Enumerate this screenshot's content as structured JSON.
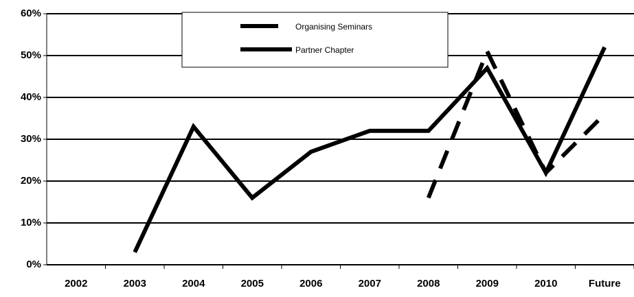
{
  "chart_data": {
    "type": "line",
    "categories": [
      "2002",
      "2003",
      "2004",
      "2005",
      "2006",
      "2007",
      "2008",
      "2009",
      "2010",
      "Future"
    ],
    "series": [
      {
        "name": "Organising Seminars",
        "color": "#000000",
        "dash": true,
        "values": [
          null,
          null,
          null,
          null,
          null,
          null,
          16,
          51,
          22,
          36
        ]
      },
      {
        "name": "Partner Chapter",
        "color": "#000000",
        "dash": false,
        "values": [
          null,
          3,
          33,
          16,
          27,
          32,
          32,
          47,
          22,
          52
        ]
      }
    ],
    "ylim": [
      0,
      60
    ],
    "yticks": [
      {
        "value": 0,
        "label": "0%"
      },
      {
        "value": 10,
        "label": "10%"
      },
      {
        "value": 20,
        "label": "20%"
      },
      {
        "value": 30,
        "label": "30%"
      },
      {
        "value": 40,
        "label": "40%"
      },
      {
        "value": 50,
        "label": "50%"
      },
      {
        "value": 60,
        "label": "60%"
      }
    ],
    "grid": true,
    "legend": "top"
  }
}
